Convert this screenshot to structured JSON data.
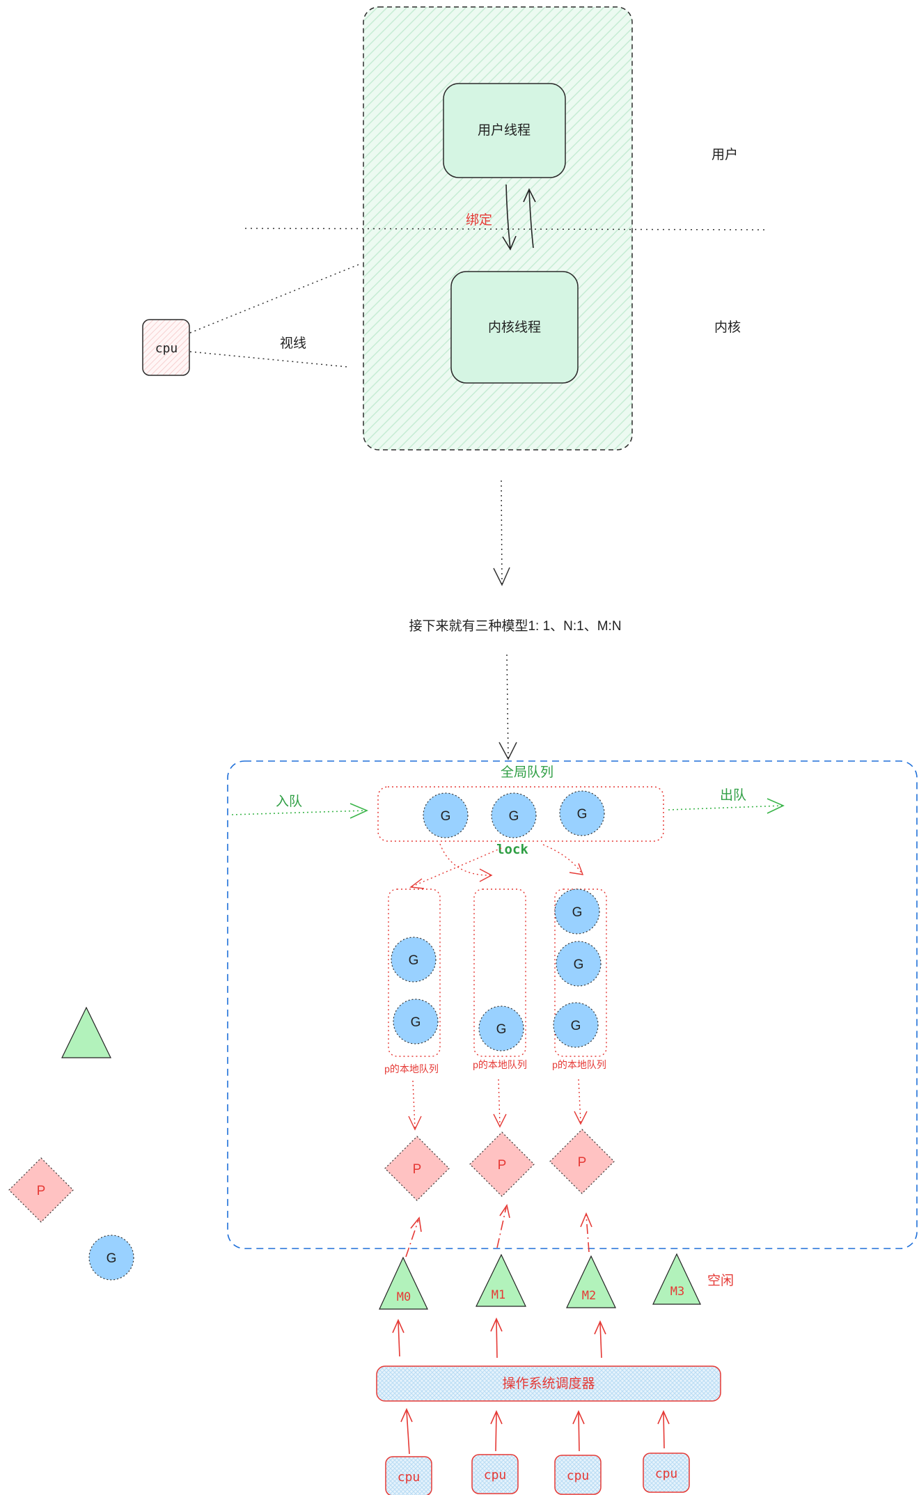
{
  "colors": {
    "green_fill": "#d5f5e3",
    "green_stroke": "#2f7d4a",
    "red": "#e53935",
    "blue_dash": "#1e6fd9",
    "g_fill": "#99d1ff",
    "p_fill": "#ffc2c2",
    "m_fill": "#b2f2bb",
    "green_text": "#2e9e43"
  },
  "top_model": {
    "user_thread": "用户线程",
    "kernel_thread": "内核线程",
    "bind_label": "绑定",
    "user_space": "用户",
    "kernel_space": "内核",
    "cpu": "cpu",
    "sight": "视线"
  },
  "intro_text": "接下来就有三种模型1: 1、N:1、M:N",
  "gmp": {
    "global_queue_label": "全局队列",
    "enqueue_label": "入队",
    "dequeue_label": "出队",
    "lock_label": "lock",
    "g_label": "G",
    "local_queue_label": "p的本地队列",
    "p_label": "P",
    "machines": [
      "M0",
      "M1",
      "M2",
      "M3"
    ],
    "idle_label": "空闲",
    "scheduler_label": "操作系统调度器",
    "cpus": [
      "cpu",
      "cpu",
      "cpu",
      "cpu"
    ]
  },
  "legend": {
    "p_label": "P",
    "g_label": "G"
  }
}
